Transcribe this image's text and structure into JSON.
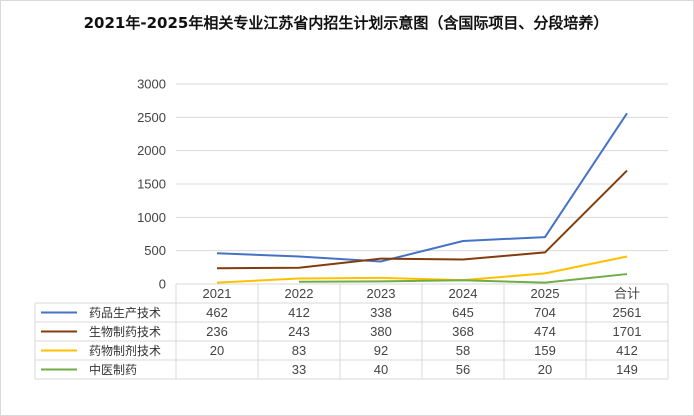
{
  "chart_data": {
    "type": "line",
    "title": "2021年-2025年相关专业江苏省内招生计划示意图（含国际项目、分段培养）",
    "categories": [
      "2021",
      "2022",
      "2023",
      "2024",
      "2025",
      "合计"
    ],
    "ylim": [
      0,
      3000
    ],
    "yticks": [
      0,
      500,
      1000,
      1500,
      2000,
      2500,
      3000
    ],
    "grid": true,
    "legend": "data-table-left",
    "series": [
      {
        "name": "药品生产技术",
        "color": "#4472C4",
        "values": [
          462,
          412,
          338,
          645,
          704,
          2561
        ]
      },
      {
        "name": "生物制药技术",
        "color": "#843C0C",
        "values": [
          236,
          243,
          380,
          368,
          474,
          1701
        ]
      },
      {
        "name": "药物制剂技术",
        "color": "#FFC000",
        "values": [
          20,
          83,
          92,
          58,
          159,
          412
        ]
      },
      {
        "name": "中医制药",
        "color": "#70AD47",
        "values": [
          null,
          33,
          40,
          56,
          20,
          149
        ]
      }
    ]
  }
}
